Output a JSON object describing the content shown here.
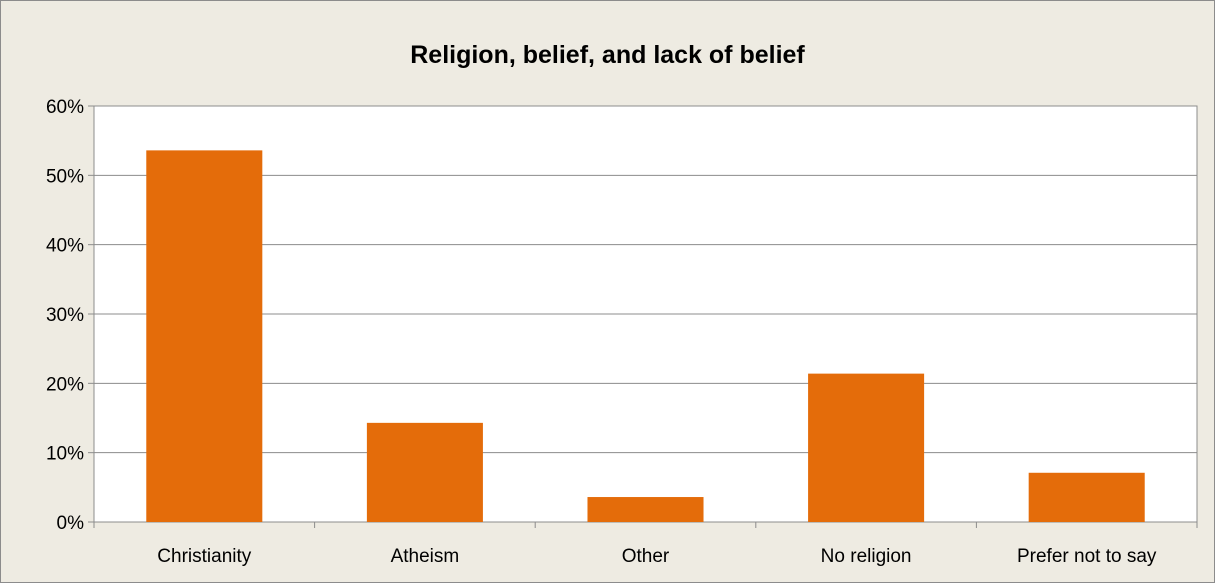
{
  "chart_data": {
    "type": "bar",
    "title": "Religion, belief, and lack of belief",
    "xlabel": "",
    "ylabel": "",
    "categories": [
      "Christianity",
      "Atheism",
      "Other",
      "No religion",
      "Prefer not to say"
    ],
    "values": [
      53.6,
      14.3,
      3.6,
      21.4,
      7.1
    ],
    "ylim": [
      0,
      60
    ],
    "yticks": [
      0,
      10,
      20,
      30,
      40,
      50,
      60
    ],
    "ytick_labels": [
      "0%",
      "10%",
      "20%",
      "30%",
      "40%",
      "50%",
      "60%"
    ],
    "grid": true,
    "legend": "none",
    "bar_color": "#e46c0a",
    "plot_background": "#ffffff",
    "chart_background": "#eeebe2"
  }
}
